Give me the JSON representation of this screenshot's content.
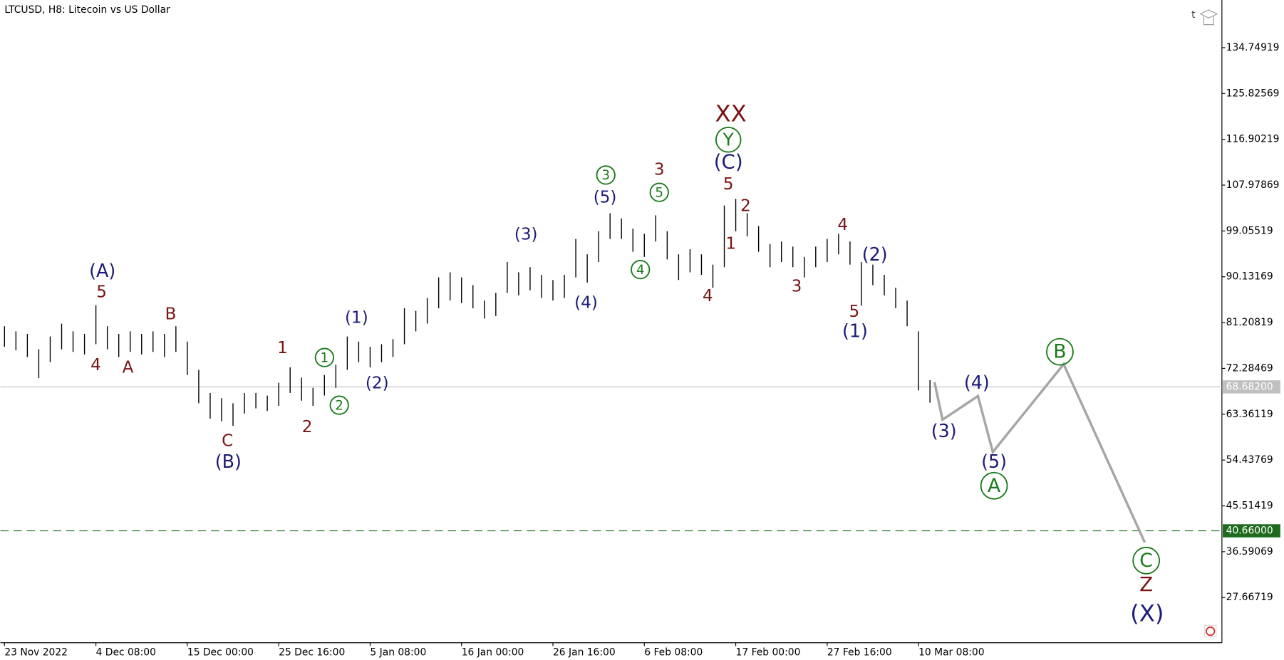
{
  "chart_data": {
    "type": "hilo",
    "title": "LTCUSD, H8:  Litecoin vs US Dollar",
    "bar_color": "#000000",
    "categories": [
      "23 Nov 2022",
      null,
      null,
      null,
      null,
      null,
      null,
      null,
      "4 Dec 08:00",
      null,
      null,
      null,
      null,
      null,
      null,
      null,
      "15 Dec 00:00",
      null,
      null,
      null,
      null,
      null,
      null,
      null,
      "25 Dec 16:00",
      null,
      null,
      null,
      null,
      null,
      null,
      null,
      "5 Jan 08:00",
      null,
      null,
      null,
      null,
      null,
      null,
      null,
      "16 Jan 00:00",
      null,
      null,
      null,
      null,
      null,
      null,
      null,
      "26 Jan 16:00",
      null,
      null,
      null,
      null,
      null,
      null,
      null,
      "6 Feb 08:00",
      null,
      null,
      null,
      null,
      null,
      null,
      null,
      "17 Feb 00:00",
      null,
      null,
      null,
      null,
      null,
      null,
      null,
      "27 Feb 16:00",
      null,
      null,
      null,
      null,
      null,
      null,
      null,
      "10 Mar 08:00",
      null
    ],
    "high": [
      80.5,
      79.5,
      79.0,
      76.0,
      78.5,
      81.0,
      79.5,
      79.0,
      84.6,
      80.5,
      79.0,
      79.5,
      79.0,
      79.5,
      79.0,
      80.5,
      77.5,
      72.0,
      67.5,
      66.5,
      65.5,
      67.5,
      67.5,
      67.0,
      69.5,
      72.5,
      70.5,
      68.5,
      71.0,
      73.0,
      78.5,
      77.5,
      76.5,
      77.0,
      78.0,
      84.0,
      83.5,
      86.0,
      90.0,
      91.0,
      90.0,
      88.5,
      85.5,
      87.0,
      93.0,
      91.0,
      92.0,
      90.5,
      89.5,
      90.5,
      97.5,
      94.5,
      99.0,
      102.5,
      101.5,
      99.5,
      98.5,
      102.1,
      99.0,
      94.5,
      95.5,
      94.5,
      92.5,
      104.0,
      105.3,
      102.5,
      100.0,
      96.5,
      97.0,
      96.0,
      94.0,
      96.0,
      97.5,
      98.5,
      97.0,
      93.0,
      92.5,
      90.5,
      88.0,
      85.5,
      79.5,
      70.0
    ],
    "low": [
      76.5,
      75.8,
      74.5,
      70.4,
      73.5,
      76.0,
      75.5,
      75.0,
      77.0,
      76.0,
      74.5,
      75.5,
      75.0,
      75.5,
      74.5,
      75.5,
      71.0,
      65.5,
      62.5,
      62.0,
      61.1,
      63.5,
      64.5,
      64.0,
      65.0,
      67.5,
      66.0,
      65.0,
      67.0,
      68.5,
      72.0,
      73.5,
      72.5,
      73.5,
      74.5,
      77.0,
      79.5,
      81.0,
      84.0,
      85.5,
      85.0,
      84.0,
      82.0,
      82.5,
      87.0,
      86.5,
      87.5,
      86.0,
      85.5,
      86.0,
      90.0,
      89.0,
      93.0,
      97.5,
      97.5,
      95.0,
      94.0,
      97.0,
      93.5,
      89.5,
      91.0,
      90.5,
      88.0,
      92.0,
      99.0,
      98.0,
      95.0,
      92.0,
      93.0,
      92.0,
      90.0,
      92.0,
      93.0,
      94.5,
      92.5,
      84.5,
      88.5,
      86.5,
      84.0,
      80.5,
      68.0,
      65.6
    ],
    "ylim": [
      18.86,
      144.03
    ],
    "yticks": [
      134.74919,
      125.82569,
      116.90219,
      107.97869,
      99.05519,
      90.13169,
      81.20819,
      72.28469,
      63.36119,
      54.43769,
      45.51419,
      36.59069,
      27.66719
    ],
    "last_price": {
      "value": 68.682,
      "label": "68.68200",
      "color": "#c0c0c0"
    },
    "level": {
      "value": 40.66,
      "label": "40.66000",
      "color": "#1e6b1e"
    },
    "projection": {
      "color": "#a6a6a6",
      "x": [
        81.4,
        82.1,
        85.2,
        86.5,
        92.7,
        99.8
      ],
      "values": [
        69.6,
        62.3,
        66.9,
        56.0,
        73.1,
        38.4
      ]
    },
    "annotations": [
      {
        "text": "(A)",
        "color": "#1c1c78"
      },
      {
        "text": "5",
        "color": "#7a1212"
      },
      {
        "text": "4",
        "color": "#7a1212"
      },
      {
        "text": "A",
        "color": "#7a1212"
      },
      {
        "text": "B",
        "color": "#7a1212"
      },
      {
        "text": "C",
        "color": "#7a1212"
      },
      {
        "text": "(B)",
        "color": "#1c1c78"
      },
      {
        "text": "1",
        "color": "#7a1212"
      },
      {
        "text": "2",
        "color": "#7a1212"
      },
      {
        "text": "1",
        "color": "#1a7a1a",
        "circled": true
      },
      {
        "text": "2",
        "color": "#1a7a1a",
        "circled": true
      },
      {
        "text": "(1)",
        "color": "#1c1c78"
      },
      {
        "text": "(2)",
        "color": "#1c1c78"
      },
      {
        "text": "(3)",
        "color": "#1c1c78"
      },
      {
        "text": "(4)",
        "color": "#1c1c78"
      },
      {
        "text": "(5)",
        "color": "#1c1c78"
      },
      {
        "text": "3",
        "color": "#1a7a1a",
        "circled": true
      },
      {
        "text": "3",
        "color": "#7a1212"
      },
      {
        "text": "5",
        "color": "#1a7a1a",
        "circled": true
      },
      {
        "text": "4",
        "color": "#1a7a1a",
        "circled": true
      },
      {
        "text": "4",
        "color": "#7a1212"
      },
      {
        "text": "XX",
        "color": "#7a1212"
      },
      {
        "text": "Y",
        "color": "#1a7a1a",
        "circled": true
      },
      {
        "text": "(C)",
        "color": "#1c1c78"
      },
      {
        "text": "5",
        "color": "#7a1212"
      },
      {
        "text": "1",
        "color": "#7a1212"
      },
      {
        "text": "2",
        "color": "#7a1212"
      },
      {
        "text": "3",
        "color": "#7a1212"
      },
      {
        "text": "4",
        "color": "#7a1212"
      },
      {
        "text": "(2)",
        "color": "#1c1c78"
      },
      {
        "text": "5",
        "color": "#7a1212"
      },
      {
        "text": "(1)",
        "color": "#1c1c78"
      },
      {
        "text": "(3)",
        "color": "#1c1c78"
      },
      {
        "text": "(4)",
        "color": "#1c1c78"
      },
      {
        "text": "(5)",
        "color": "#1c1c78"
      },
      {
        "text": "A",
        "color": "#1a7a1a",
        "circled": true
      },
      {
        "text": "B",
        "color": "#1a7a1a",
        "circled": true
      },
      {
        "text": "C",
        "color": "#1a7a1a",
        "circled": true
      },
      {
        "text": "Z",
        "color": "#7a1212"
      },
      {
        "text": "(X)",
        "color": "#1c1c78"
      }
    ]
  }
}
